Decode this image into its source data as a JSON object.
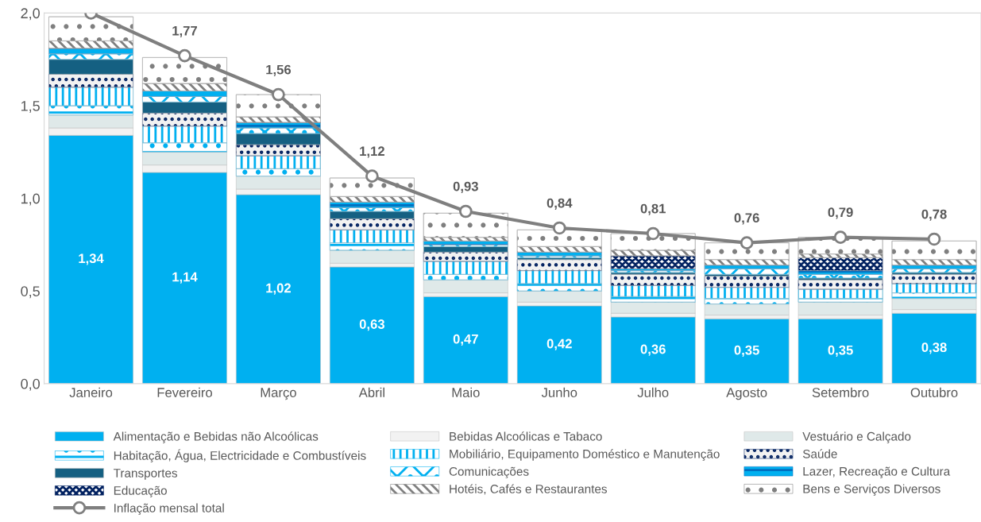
{
  "chart_data": {
    "type": "bar",
    "stacked": true,
    "categories": [
      "Janeiro",
      "Fevereiro",
      "Março",
      "Abril",
      "Maio",
      "Junho",
      "Julho",
      "Agosto",
      "Setembro",
      "Outubro"
    ],
    "ylim": [
      0,
      2.0
    ],
    "yticks": [
      {
        "value": 0,
        "label": "0,0"
      },
      {
        "value": 0.5,
        "label": "0,5"
      },
      {
        "value": 1.0,
        "label": "1,0"
      },
      {
        "value": 1.5,
        "label": "1,5"
      },
      {
        "value": 2.0,
        "label": "2,0"
      }
    ],
    "grid": false,
    "legend": "bottom",
    "series": [
      {
        "name": "Alimentação e Bebidas não Alcoólicas",
        "color": "#00b0f0",
        "values": [
          1.34,
          1.14,
          1.02,
          0.63,
          0.47,
          0.42,
          0.36,
          0.35,
          0.35,
          0.38
        ],
        "value_labels": [
          "1,34",
          "1,14",
          "1,02",
          "0,63",
          "0,47",
          "0,42",
          "0,36",
          "0,35",
          "0,35",
          "0,38"
        ]
      },
      {
        "name": "Bebidas Alcoólicas e Tabaco",
        "color": "#f2f2f2",
        "values": [
          0.04,
          0.04,
          0.03,
          0.02,
          0.02,
          0.02,
          0.02,
          0.02,
          0.02,
          0.02
        ]
      },
      {
        "name": "Vestuário e Calçado",
        "color": "#dfe9e9",
        "values": [
          0.07,
          0.07,
          0.07,
          0.07,
          0.07,
          0.06,
          0.06,
          0.06,
          0.07,
          0.06
        ]
      },
      {
        "name": "Habitação, Água, Electricidade e Combustíveis",
        "color": "#00b0f0",
        "values": [
          0.05,
          0.05,
          0.04,
          0.04,
          0.03,
          0.04,
          0.03,
          0.03,
          0.02,
          0.03
        ]
      },
      {
        "name": "Mobiliário, Equipamento Doméstico e Manutenção",
        "color": "#00b0f0",
        "values": [
          0.1,
          0.09,
          0.07,
          0.07,
          0.07,
          0.07,
          0.06,
          0.06,
          0.05,
          0.05
        ]
      },
      {
        "name": "Saúde",
        "color": "#002060",
        "values": [
          0.07,
          0.07,
          0.06,
          0.06,
          0.05,
          0.06,
          0.06,
          0.06,
          0.05,
          0.05
        ]
      },
      {
        "name": "Transportes",
        "color": "#156082",
        "values": [
          0.08,
          0.06,
          0.06,
          0.04,
          0.03,
          0.01,
          0.01,
          0.01,
          0.01,
          0.01
        ]
      },
      {
        "name": "Comunicações",
        "color": "#00b0f0",
        "values": [
          0.03,
          0.03,
          0.03,
          0.02,
          0.01,
          0.01,
          0.01,
          0.03,
          0.02,
          0.02
        ]
      },
      {
        "name": "Lazer, Recreação e Cultura",
        "color": "#0070c0",
        "values": [
          0.03,
          0.03,
          0.03,
          0.03,
          0.02,
          0.02,
          0.01,
          0.02,
          0.02,
          0.02
        ]
      },
      {
        "name": "Educação",
        "color": "#002060",
        "values": [
          0,
          0,
          0,
          0,
          0,
          0,
          0.07,
          0,
          0.07,
          0
        ]
      },
      {
        "name": "Hotéis, Cafés e Restaurantes",
        "color": "#7f7f7f",
        "values": [
          0.04,
          0.04,
          0.03,
          0.03,
          0.02,
          0.03,
          0.03,
          0.03,
          0.02,
          0.03
        ]
      },
      {
        "name": "Bens e Serviços Diversos",
        "color": "#7f7f7f",
        "values": [
          0.13,
          0.14,
          0.12,
          0.1,
          0.13,
          0.09,
          0.09,
          0.09,
          0.09,
          0.1
        ]
      },
      {
        "name": "Inflação mensal total",
        "type": "line",
        "color": "#7f7f7f",
        "marker": "circle",
        "values": [
          2.0,
          1.77,
          1.56,
          1.12,
          0.93,
          0.84,
          0.81,
          0.76,
          0.79,
          0.78
        ],
        "value_labels": [
          null,
          "1,77",
          "1,56",
          "1,12",
          "0,93",
          "0,84",
          "0,81",
          "0,76",
          "0,79",
          "0,78"
        ]
      }
    ]
  }
}
